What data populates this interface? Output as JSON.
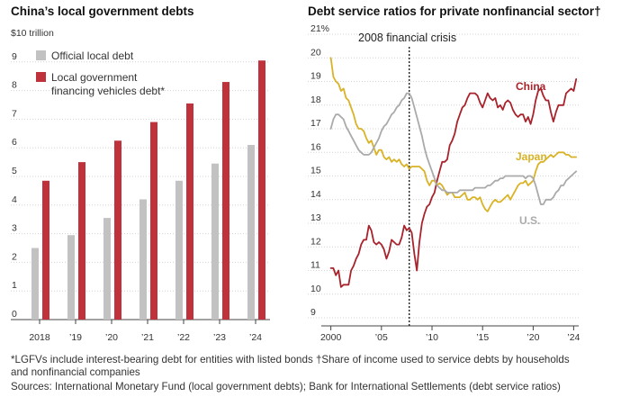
{
  "chart_data": [
    {
      "type": "bar",
      "title": "China’s local government debts",
      "unit_label": "$10 trillion",
      "categories": [
        "2018",
        "’19",
        "’20",
        "’21",
        "’22",
        "’23",
        "’24"
      ],
      "yticks": [
        "0",
        "1",
        "2",
        "3",
        "4",
        "5",
        "6",
        "7",
        "8",
        "9"
      ],
      "ylim": [
        0,
        10
      ],
      "grid": true,
      "legend_position": "top-left",
      "series": [
        {
          "name": "Official local debt",
          "color": "#c2c2c2",
          "values": [
            2.5,
            2.95,
            3.55,
            4.2,
            4.85,
            5.45,
            6.1
          ]
        },
        {
          "name": "Local government financing vehicles debt*",
          "name_line1": "Local government",
          "name_line2": "financing vehicles debt*",
          "color": "#c0323b",
          "values": [
            4.85,
            5.5,
            6.25,
            6.9,
            7.55,
            8.3,
            9.05
          ]
        }
      ]
    },
    {
      "type": "line",
      "title": "Debt service ratios for private nonfinancial sector†",
      "yticks": [
        "9",
        "10",
        "11",
        "12",
        "13",
        "14",
        "15",
        "16",
        "17",
        "18",
        "19",
        "20",
        "21%"
      ],
      "ylim": [
        9,
        21
      ],
      "xlim": [
        1999.5,
        2024.5
      ],
      "xticks": [
        {
          "value": 2000,
          "label": "2000"
        },
        {
          "value": 2005,
          "label": "’05"
        },
        {
          "value": 2010,
          "label": "’10"
        },
        {
          "value": 2015,
          "label": "’15"
        },
        {
          "value": 2020,
          "label": "’20"
        },
        {
          "value": 2024,
          "label": "’24"
        }
      ],
      "grid": true,
      "annotation": {
        "label": "2008 financial crisis",
        "x": 2007.75
      },
      "series": [
        {
          "name": "China",
          "color": "#a8232c",
          "x": [
            2000.0,
            2000.25,
            2000.5,
            2000.75,
            2001.0,
            2001.25,
            2001.5,
            2001.75,
            2002.0,
            2002.25,
            2002.5,
            2002.75,
            2003.0,
            2003.25,
            2003.5,
            2003.75,
            2004.0,
            2004.25,
            2004.5,
            2004.75,
            2005.0,
            2005.25,
            2005.5,
            2005.75,
            2006.0,
            2006.25,
            2006.5,
            2006.75,
            2007.0,
            2007.25,
            2007.5,
            2007.75,
            2008.0,
            2008.25,
            2008.5,
            2008.75,
            2009.0,
            2009.25,
            2009.5,
            2009.75,
            2010.0,
            2010.25,
            2010.5,
            2010.75,
            2011.0,
            2011.25,
            2011.5,
            2011.75,
            2012.0,
            2012.25,
            2012.5,
            2012.75,
            2013.0,
            2013.25,
            2013.5,
            2013.75,
            2014.0,
            2014.25,
            2014.5,
            2014.75,
            2015.0,
            2015.25,
            2015.5,
            2015.75,
            2016.0,
            2016.25,
            2016.5,
            2016.75,
            2017.0,
            2017.25,
            2017.5,
            2017.75,
            2018.0,
            2018.25,
            2018.5,
            2018.75,
            2019.0,
            2019.25,
            2019.5,
            2019.75,
            2020.0,
            2020.25,
            2020.5,
            2020.75,
            2021.0,
            2021.25,
            2021.5,
            2021.75,
            2022.0,
            2022.25,
            2022.5,
            2022.75,
            2023.0,
            2023.25,
            2023.5,
            2023.75,
            2024.0,
            2024.25
          ],
          "values": [
            11.1,
            11.1,
            10.8,
            11.0,
            10.3,
            10.4,
            10.4,
            10.4,
            11.0,
            11.2,
            11.5,
            11.7,
            12.1,
            12.3,
            12.3,
            12.9,
            12.7,
            12.2,
            12.1,
            12.2,
            12.1,
            11.9,
            11.5,
            11.8,
            12.3,
            12.2,
            12.1,
            12.1,
            12.4,
            12.9,
            12.7,
            12.8,
            12.6,
            11.7,
            11.0,
            12.2,
            13.0,
            13.4,
            13.7,
            13.8,
            14.1,
            14.3,
            14.8,
            15.2,
            15.6,
            15.6,
            15.7,
            16.3,
            16.5,
            16.8,
            17.3,
            17.6,
            17.9,
            18.0,
            18.3,
            18.5,
            18.5,
            18.5,
            18.4,
            18.1,
            17.9,
            18.2,
            18.5,
            18.3,
            18.2,
            18.3,
            17.9,
            18.0,
            17.8,
            18.1,
            18.2,
            18.1,
            17.8,
            17.6,
            17.5,
            17.6,
            17.6,
            17.3,
            17.5,
            17.2,
            17.6,
            18.2,
            18.6,
            18.7,
            18.4,
            18.2,
            18.2,
            17.7,
            17.3,
            17.7,
            18.0,
            18.0,
            18.0,
            18.5,
            18.6,
            18.7,
            18.6,
            19.1
          ]
        },
        {
          "name": "Japan",
          "color": "#d9b225",
          "x": [
            2000.0,
            2000.25,
            2000.5,
            2000.75,
            2001.0,
            2001.25,
            2001.5,
            2001.75,
            2002.0,
            2002.25,
            2002.5,
            2002.75,
            2003.0,
            2003.25,
            2003.5,
            2003.75,
            2004.0,
            2004.25,
            2004.5,
            2004.75,
            2005.0,
            2005.25,
            2005.5,
            2005.75,
            2006.0,
            2006.25,
            2006.5,
            2006.75,
            2007.0,
            2007.25,
            2007.5,
            2007.75,
            2008.0,
            2008.25,
            2008.5,
            2008.75,
            2009.0,
            2009.25,
            2009.5,
            2009.75,
            2010.0,
            2010.25,
            2010.5,
            2010.75,
            2011.0,
            2011.25,
            2011.5,
            2011.75,
            2012.0,
            2012.25,
            2012.5,
            2012.75,
            2013.0,
            2013.25,
            2013.5,
            2013.75,
            2014.0,
            2014.25,
            2014.5,
            2014.75,
            2015.0,
            2015.25,
            2015.5,
            2015.75,
            2016.0,
            2016.25,
            2016.5,
            2016.75,
            2017.0,
            2017.25,
            2017.5,
            2017.75,
            2018.0,
            2018.25,
            2018.5,
            2018.75,
            2019.0,
            2019.25,
            2019.5,
            2019.75,
            2020.0,
            2020.25,
            2020.5,
            2020.75,
            2021.0,
            2021.25,
            2021.5,
            2021.75,
            2022.0,
            2022.25,
            2022.5,
            2022.75,
            2023.0,
            2023.25,
            2023.5,
            2023.75,
            2024.0,
            2024.25
          ],
          "values": [
            20.0,
            19.2,
            19.0,
            18.9,
            18.6,
            18.7,
            18.3,
            18.2,
            17.9,
            17.6,
            17.2,
            17.0,
            17.0,
            16.9,
            16.6,
            16.4,
            16.5,
            16.2,
            15.9,
            16.1,
            16.1,
            15.8,
            15.7,
            15.8,
            15.6,
            15.7,
            15.6,
            15.7,
            15.5,
            15.4,
            15.5,
            15.3,
            15.4,
            15.4,
            15.4,
            15.4,
            15.3,
            15.2,
            14.8,
            14.6,
            14.8,
            14.8,
            14.6,
            14.7,
            14.6,
            14.4,
            14.2,
            14.3,
            14.3,
            14.1,
            14.1,
            14.1,
            14.2,
            14.3,
            14.0,
            14.0,
            14.1,
            14.1,
            14.0,
            14.1,
            13.8,
            13.6,
            13.5,
            13.7,
            13.9,
            14.0,
            13.9,
            13.9,
            14.0,
            14.1,
            14.2,
            14.0,
            14.2,
            14.4,
            14.6,
            14.7,
            14.7,
            14.8,
            14.6,
            14.7,
            14.8,
            15.2,
            15.5,
            15.6,
            15.6,
            15.7,
            15.8,
            15.9,
            15.8,
            15.9,
            16.0,
            16.0,
            16.0,
            15.9,
            15.9,
            15.8,
            15.8,
            15.8
          ]
        },
        {
          "name": "U.S.",
          "color": "#aaaaaa",
          "x": [
            2000.0,
            2000.25,
            2000.5,
            2000.75,
            2001.0,
            2001.25,
            2001.5,
            2001.75,
            2002.0,
            2002.25,
            2002.5,
            2002.75,
            2003.0,
            2003.25,
            2003.5,
            2003.75,
            2004.0,
            2004.25,
            2004.5,
            2004.75,
            2005.0,
            2005.25,
            2005.5,
            2005.75,
            2006.0,
            2006.25,
            2006.5,
            2006.75,
            2007.0,
            2007.25,
            2007.5,
            2007.75,
            2008.0,
            2008.25,
            2008.5,
            2008.75,
            2009.0,
            2009.25,
            2009.5,
            2009.75,
            2010.0,
            2010.25,
            2010.5,
            2010.75,
            2011.0,
            2011.25,
            2011.5,
            2011.75,
            2012.0,
            2012.25,
            2012.5,
            2012.75,
            2013.0,
            2013.25,
            2013.5,
            2013.75,
            2014.0,
            2014.25,
            2014.5,
            2014.75,
            2015.0,
            2015.25,
            2015.5,
            2015.75,
            2016.0,
            2016.25,
            2016.5,
            2016.75,
            2017.0,
            2017.25,
            2017.5,
            2017.75,
            2018.0,
            2018.25,
            2018.5,
            2018.75,
            2019.0,
            2019.25,
            2019.5,
            2019.75,
            2020.0,
            2020.25,
            2020.5,
            2020.75,
            2021.0,
            2021.25,
            2021.5,
            2021.75,
            2022.0,
            2022.25,
            2022.5,
            2022.75,
            2023.0,
            2023.25,
            2023.5,
            2023.75,
            2024.0,
            2024.25
          ],
          "values": [
            17.0,
            17.4,
            17.6,
            17.6,
            17.5,
            17.4,
            17.1,
            16.9,
            16.7,
            16.5,
            16.3,
            16.1,
            16.0,
            15.9,
            15.9,
            15.9,
            16.0,
            16.2,
            16.4,
            16.6,
            16.9,
            17.1,
            17.2,
            17.4,
            17.6,
            17.7,
            17.9,
            18.0,
            18.2,
            18.3,
            18.5,
            18.5,
            18.3,
            17.9,
            17.5,
            17.1,
            16.7,
            16.2,
            15.8,
            15.5,
            15.2,
            14.9,
            14.6,
            14.5,
            14.4,
            14.4,
            14.3,
            14.3,
            14.3,
            14.3,
            14.3,
            14.4,
            14.4,
            14.4,
            14.4,
            14.4,
            14.4,
            14.5,
            14.5,
            14.5,
            14.5,
            14.5,
            14.6,
            14.6,
            14.7,
            14.8,
            14.8,
            14.9,
            14.9,
            15.0,
            15.0,
            15.0,
            15.0,
            15.0,
            15.0,
            15.0,
            15.0,
            14.9,
            15.0,
            15.0,
            14.9,
            14.6,
            14.2,
            13.8,
            13.8,
            14.0,
            14.0,
            14.0,
            14.1,
            14.3,
            14.4,
            14.6,
            14.6,
            14.8,
            14.9,
            15.0,
            15.1,
            15.2
          ]
        }
      ]
    }
  ],
  "footnotes": {
    "line1": "*LGFVs include interest-bearing debt for entities with listed bonds   †Share of income used to service debts by households",
    "line2": "and nonfinancial companies",
    "line3": "Sources: International Monetary Fund (local government debts); Bank for International Settlements (debt service ratios)"
  }
}
